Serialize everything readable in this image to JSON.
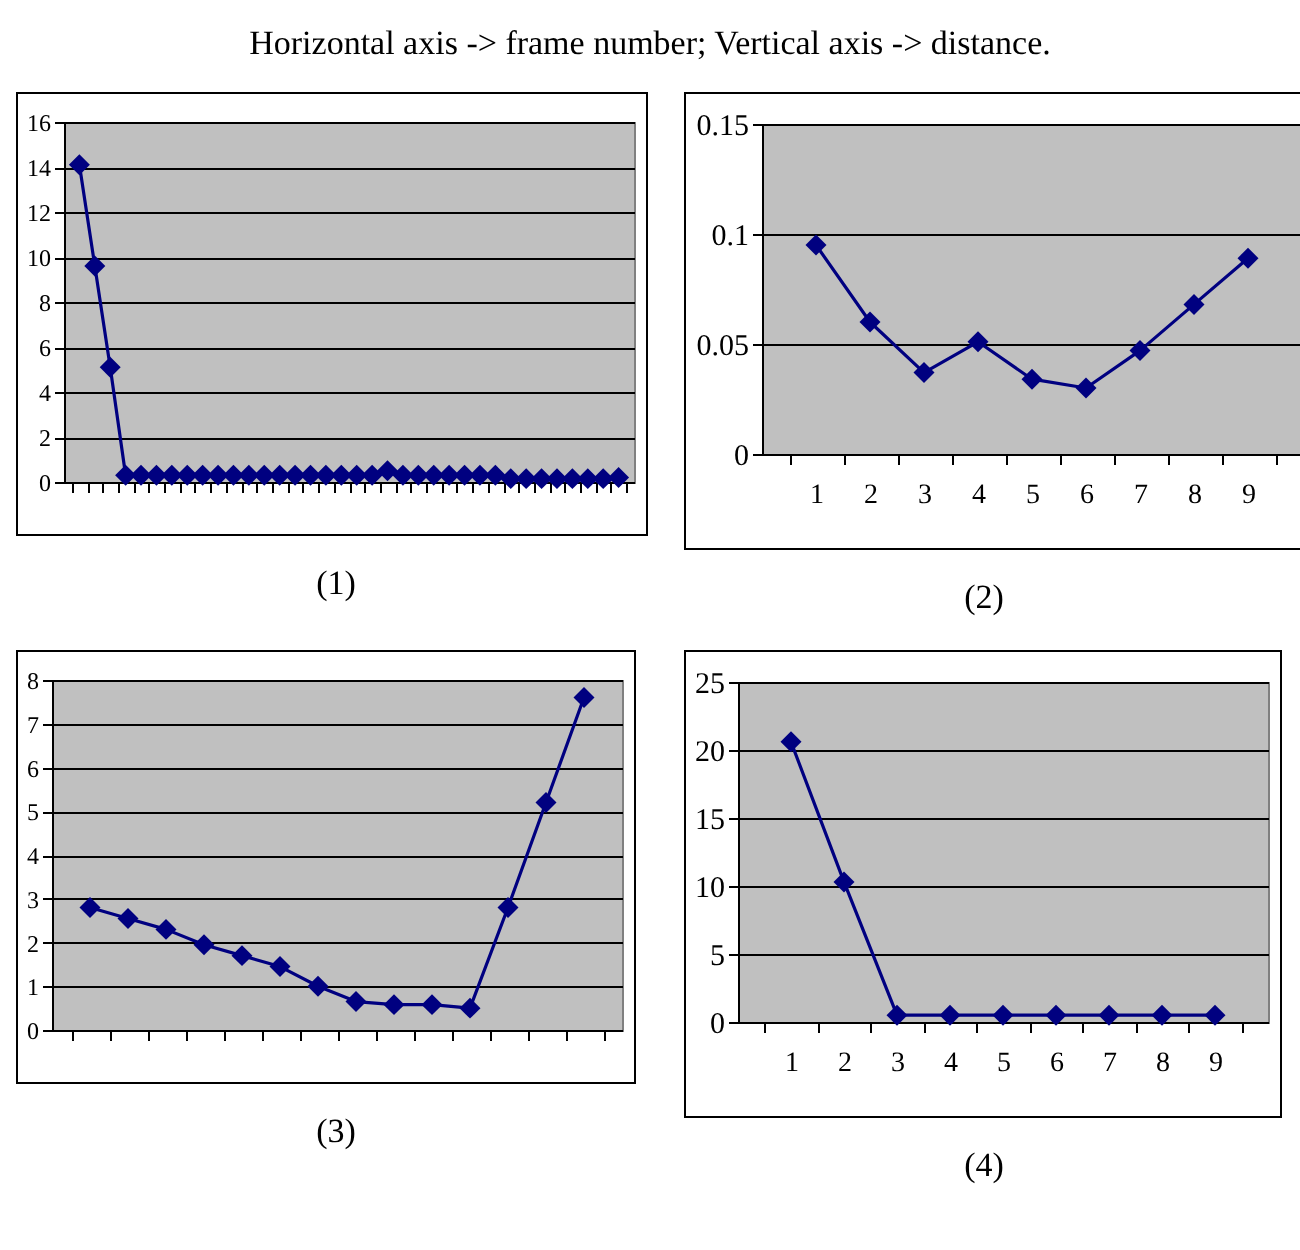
{
  "chart_data": [
    {
      "type": "line",
      "title": "Horizontal axis -> frame number; Vertical axis -> distance.",
      "annotations": [
        "(1)"
      ],
      "categories": [
        null,
        null,
        null,
        null,
        null,
        null,
        null,
        null,
        null,
        null,
        null,
        null,
        null,
        null,
        null,
        null,
        null,
        null,
        null,
        null,
        null,
        null,
        null,
        null,
        null,
        null,
        null,
        null,
        null,
        null,
        null,
        null,
        null,
        null,
        null,
        null
      ],
      "series": [
        {
          "color": "#000080",
          "values": [
            14.1,
            9.6,
            5.1,
            0.3,
            0.3,
            0.3,
            0.3,
            0.3,
            0.3,
            0.3,
            0.3,
            0.3,
            0.3,
            0.3,
            0.3,
            0.3,
            0.3,
            0.3,
            0.3,
            0.3,
            0.5,
            0.3,
            0.3,
            0.3,
            0.3,
            0.3,
            0.3,
            0.3,
            0.15,
            0.15,
            0.15,
            0.15,
            0.15,
            0.15,
            0.15,
            0.2
          ]
        }
      ],
      "ylim": [
        0,
        16
      ],
      "yticks": [
        0,
        2,
        4,
        6,
        8,
        10,
        12,
        14,
        16
      ],
      "grid": "y",
      "marker": "diamond",
      "tick_labels": "y"
    },
    {
      "type": "line",
      "annotations": [
        "(2)"
      ],
      "categories": [
        "1",
        "2",
        "3",
        "4",
        "5",
        "6",
        "7",
        "8",
        "9"
      ],
      "series": [
        {
          "color": "#000080",
          "values": [
            0.095,
            0.06,
            0.037,
            0.051,
            0.034,
            0.03,
            0.047,
            0.068,
            0.089
          ]
        }
      ],
      "ylim": [
        0,
        0.15
      ],
      "yticks": [
        0,
        0.05,
        0.1,
        0.15
      ],
      "grid": "y",
      "marker": "diamond"
    },
    {
      "type": "line",
      "annotations": [
        "(3)"
      ],
      "categories": [
        null,
        null,
        null,
        null,
        null,
        null,
        null,
        null,
        null,
        null,
        null,
        null,
        null,
        null
      ],
      "series": [
        {
          "color": "#000080",
          "values": [
            2.8,
            2.55,
            2.3,
            1.95,
            1.7,
            1.45,
            1.0,
            0.65,
            0.58,
            0.58,
            0.5,
            2.8,
            5.2,
            7.6
          ]
        }
      ],
      "ylim": [
        0,
        8
      ],
      "yticks": [
        0,
        1,
        2,
        3,
        4,
        5,
        6,
        7,
        8
      ],
      "grid": "y",
      "marker": "diamond",
      "tick_labels": "y"
    },
    {
      "type": "line",
      "annotations": [
        "(4)"
      ],
      "categories": [
        "1",
        "2",
        "3",
        "4",
        "5",
        "6",
        "7",
        "8",
        "9"
      ],
      "series": [
        {
          "color": "#000080",
          "values": [
            20.6,
            10.3,
            0.5,
            0.5,
            0.5,
            0.5,
            0.5,
            0.5,
            0.5
          ]
        }
      ],
      "ylim": [
        0,
        25
      ],
      "yticks": [
        0,
        5,
        10,
        15,
        20,
        25
      ],
      "grid": "y",
      "marker": "diamond"
    }
  ]
}
